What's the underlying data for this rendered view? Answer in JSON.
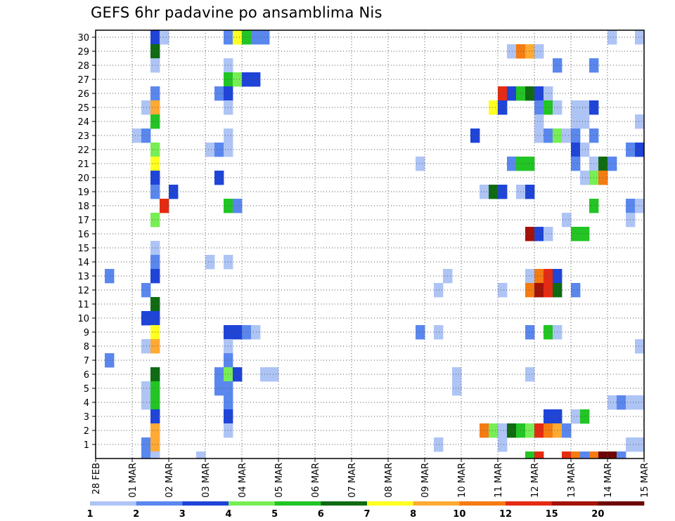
{
  "chart_data": {
    "type": "heatmap",
    "title": "GEFS 6hr padavine po ansamblima Nis",
    "xlabel": "",
    "ylabel": "",
    "y_ticks": [
      1,
      2,
      3,
      4,
      5,
      6,
      7,
      8,
      9,
      10,
      11,
      12,
      13,
      14,
      15,
      16,
      17,
      18,
      19,
      20,
      21,
      22,
      23,
      24,
      25,
      26,
      27,
      28,
      29,
      30
    ],
    "x_ticks": [
      "28 FEB",
      "01 MAR",
      "02 MAR",
      "03 MAR",
      "04 MAR",
      "05 MAR",
      "06 MAR",
      "07 MAR",
      "08 MAR",
      "09 MAR",
      "10 MAR",
      "11 MAR",
      "12 MAR",
      "13 MAR",
      "14 MAR",
      "15 MAR"
    ],
    "x_step": "6 hours",
    "grid": true,
    "legend_position": "bottom",
    "legend": {
      "labels": [
        "1",
        "2",
        "3",
        "4",
        "5",
        "6",
        "7",
        "8",
        "10",
        "12",
        "15",
        "20"
      ],
      "colors": [
        "#aec4f5",
        "#5a87ee",
        "#1f44d8",
        "#77ee55",
        "#22c524",
        "#0f6b12",
        "#ffff21",
        "#ffaa33",
        "#f57b12",
        "#e52b12",
        "#a41208",
        "#6d0505"
      ]
    },
    "cells_note": "each row: y = ensemble member, then [step, color-level index] pairs; step 0 = 28 FEB 00z, step count in 6h units; level index into legend.colors (0 = 1-2 mm ... 11 = >20 mm)",
    "cells": [
      [
        30,
        [
          [
            6,
            2
          ],
          [
            7,
            0
          ],
          [
            14,
            1
          ],
          [
            15,
            6
          ],
          [
            16,
            4
          ],
          [
            17,
            1
          ],
          [
            18,
            1
          ],
          [
            56,
            0
          ],
          [
            59,
            0
          ]
        ]
      ],
      [
        29,
        [
          [
            6,
            5
          ],
          [
            45,
            0
          ],
          [
            46,
            8
          ],
          [
            47,
            7
          ],
          [
            48,
            0
          ]
        ]
      ],
      [
        28,
        [
          [
            6,
            0
          ],
          [
            14,
            0
          ],
          [
            50,
            1
          ],
          [
            54,
            1
          ]
        ]
      ],
      [
        27,
        [
          [
            14,
            4
          ],
          [
            15,
            3
          ],
          [
            16,
            2
          ],
          [
            17,
            2
          ]
        ]
      ],
      [
        26,
        [
          [
            6,
            1
          ],
          [
            13,
            1
          ],
          [
            14,
            2
          ],
          [
            44,
            9
          ],
          [
            45,
            2
          ],
          [
            46,
            4
          ],
          [
            47,
            5
          ],
          [
            48,
            2
          ],
          [
            49,
            0
          ]
        ]
      ],
      [
        25,
        [
          [
            5,
            0
          ],
          [
            6,
            7
          ],
          [
            14,
            0
          ],
          [
            43,
            6
          ],
          [
            44,
            2
          ],
          [
            48,
            1
          ],
          [
            49,
            4
          ],
          [
            50,
            0
          ],
          [
            52,
            0
          ],
          [
            53,
            0
          ],
          [
            54,
            2
          ]
        ]
      ],
      [
        24,
        [
          [
            6,
            4
          ],
          [
            48,
            0
          ],
          [
            52,
            0
          ],
          [
            53,
            0
          ],
          [
            59,
            0
          ]
        ]
      ],
      [
        23,
        [
          [
            4,
            0
          ],
          [
            5,
            1
          ],
          [
            14,
            0
          ],
          [
            41,
            2
          ],
          [
            48,
            0
          ],
          [
            49,
            1
          ],
          [
            50,
            3
          ],
          [
            51,
            0
          ],
          [
            52,
            1
          ],
          [
            54,
            1
          ]
        ]
      ],
      [
        22,
        [
          [
            6,
            3
          ],
          [
            12,
            0
          ],
          [
            13,
            1
          ],
          [
            14,
            0
          ],
          [
            52,
            2
          ],
          [
            53,
            0
          ],
          [
            58,
            1
          ],
          [
            59,
            2
          ]
        ]
      ],
      [
        21,
        [
          [
            6,
            6
          ],
          [
            35,
            0
          ],
          [
            45,
            1
          ],
          [
            46,
            4
          ],
          [
            47,
            4
          ],
          [
            52,
            1
          ],
          [
            54,
            0
          ],
          [
            55,
            5
          ],
          [
            56,
            1
          ]
        ]
      ],
      [
        20,
        [
          [
            6,
            2
          ],
          [
            13,
            2
          ],
          [
            53,
            0
          ],
          [
            54,
            3
          ],
          [
            55,
            8
          ]
        ]
      ],
      [
        19,
        [
          [
            6,
            1
          ],
          [
            8,
            2
          ],
          [
            42,
            0
          ],
          [
            43,
            5
          ],
          [
            44,
            2
          ],
          [
            46,
            0
          ],
          [
            47,
            2
          ]
        ]
      ],
      [
        18,
        [
          [
            7,
            9
          ],
          [
            14,
            4
          ],
          [
            15,
            1
          ],
          [
            54,
            4
          ],
          [
            58,
            1
          ],
          [
            59,
            0
          ]
        ]
      ],
      [
        17,
        [
          [
            6,
            3
          ],
          [
            51,
            0
          ],
          [
            58,
            0
          ]
        ]
      ],
      [
        16,
        [
          [
            47,
            10
          ],
          [
            48,
            2
          ],
          [
            49,
            0
          ],
          [
            52,
            4
          ],
          [
            53,
            4
          ]
        ]
      ],
      [
        15,
        [
          [
            6,
            0
          ]
        ]
      ],
      [
        14,
        [
          [
            6,
            1
          ],
          [
            12,
            0
          ],
          [
            14,
            0
          ]
        ]
      ],
      [
        13,
        [
          [
            1,
            1
          ],
          [
            6,
            2
          ],
          [
            38,
            0
          ],
          [
            47,
            0
          ],
          [
            48,
            8
          ],
          [
            49,
            9
          ],
          [
            50,
            2
          ]
        ]
      ],
      [
        12,
        [
          [
            5,
            1
          ],
          [
            37,
            0
          ],
          [
            44,
            0
          ],
          [
            47,
            8
          ],
          [
            48,
            10
          ],
          [
            49,
            9
          ],
          [
            50,
            5
          ],
          [
            52,
            1
          ]
        ]
      ],
      [
        11,
        [
          [
            6,
            5
          ]
        ]
      ],
      [
        10,
        [
          [
            5,
            2
          ],
          [
            6,
            2
          ]
        ]
      ],
      [
        9,
        [
          [
            6,
            6
          ],
          [
            14,
            2
          ],
          [
            15,
            2
          ],
          [
            16,
            1
          ],
          [
            17,
            0
          ],
          [
            35,
            1
          ],
          [
            37,
            0
          ],
          [
            47,
            1
          ],
          [
            49,
            4
          ],
          [
            50,
            0
          ]
        ]
      ],
      [
        8,
        [
          [
            5,
            0
          ],
          [
            6,
            7
          ],
          [
            14,
            0
          ],
          [
            59,
            0
          ]
        ]
      ],
      [
        7,
        [
          [
            1,
            1
          ],
          [
            14,
            1
          ]
        ]
      ],
      [
        6,
        [
          [
            6,
            5
          ],
          [
            13,
            1
          ],
          [
            14,
            3
          ],
          [
            15,
            2
          ],
          [
            18,
            0
          ],
          [
            19,
            0
          ],
          [
            39,
            0
          ],
          [
            47,
            0
          ]
        ]
      ],
      [
        5,
        [
          [
            5,
            0
          ],
          [
            6,
            4
          ],
          [
            13,
            1
          ],
          [
            14,
            1
          ],
          [
            39,
            0
          ]
        ]
      ],
      [
        4,
        [
          [
            5,
            0
          ],
          [
            6,
            4
          ],
          [
            14,
            1
          ],
          [
            56,
            0
          ],
          [
            57,
            1
          ],
          [
            58,
            0
          ],
          [
            59,
            0
          ]
        ]
      ],
      [
        3,
        [
          [
            6,
            2
          ],
          [
            14,
            2
          ],
          [
            49,
            2
          ],
          [
            50,
            2
          ],
          [
            52,
            0
          ],
          [
            53,
            4
          ]
        ]
      ],
      [
        2,
        [
          [
            6,
            7
          ],
          [
            14,
            0
          ],
          [
            42,
            8
          ],
          [
            43,
            3
          ],
          [
            44,
            0
          ],
          [
            45,
            5
          ],
          [
            46,
            4
          ],
          [
            47,
            3
          ],
          [
            48,
            9
          ],
          [
            49,
            8
          ],
          [
            50,
            7
          ],
          [
            51,
            1
          ]
        ]
      ],
      [
        1,
        [
          [
            5,
            1
          ],
          [
            6,
            7
          ],
          [
            37,
            0
          ],
          [
            44,
            0
          ],
          [
            58,
            0
          ],
          [
            59,
            0
          ]
        ]
      ],
      [
        0,
        [
          [
            5,
            1
          ],
          [
            6,
            0
          ],
          [
            11,
            0
          ],
          [
            47,
            4
          ],
          [
            48,
            9
          ],
          [
            51,
            9
          ],
          [
            52,
            8
          ],
          [
            53,
            1
          ],
          [
            54,
            8
          ],
          [
            55,
            11
          ],
          [
            56,
            11
          ],
          [
            57,
            1
          ]
        ]
      ]
    ]
  }
}
